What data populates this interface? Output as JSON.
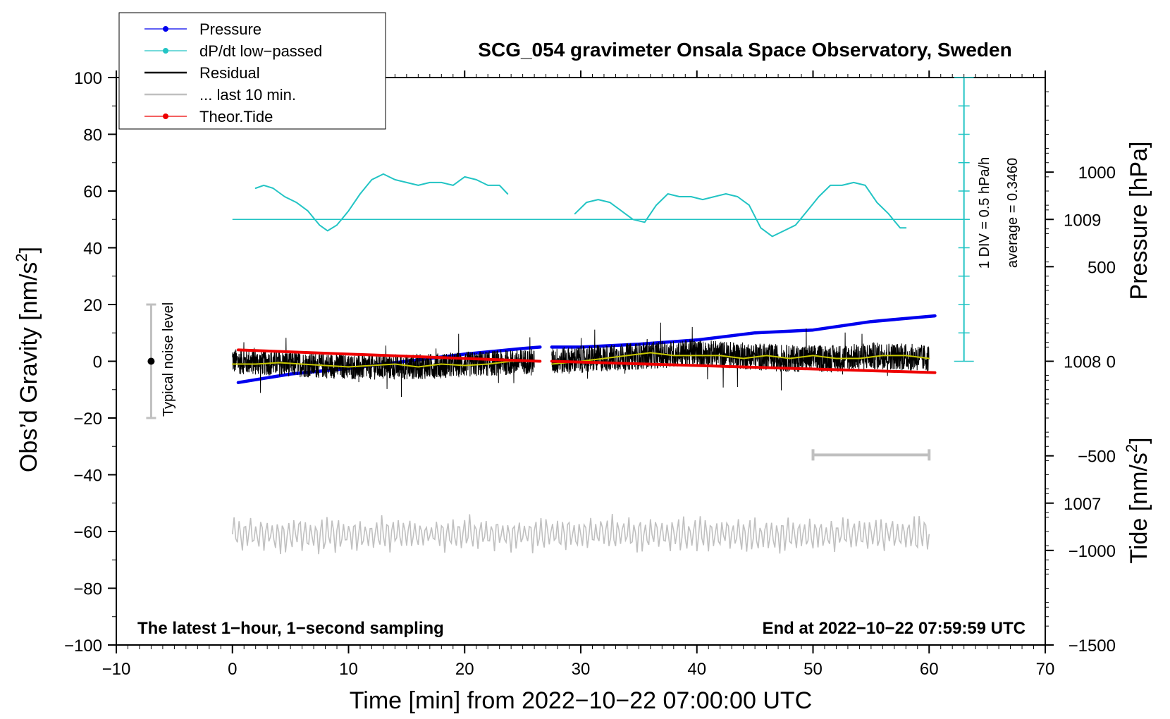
{
  "chart_data": {
    "type": "line",
    "title": "SCG_054 gravimeter Onsala Space Observatory, Sweden",
    "xlabel": "Time [min] from 2022−10−22 07:00:00 UTC",
    "ylabel_left_main": "Obs’d Gravity [nm/s",
    "ylabel_left_sup": "2",
    "ylabel_left_end": "]",
    "ylabel_right_pressure": "Pressure [hPa]",
    "ylabel_right_tide_main": "Tide [nm/s",
    "ylabel_right_tide_sup": "2",
    "ylabel_right_tide_end": "]",
    "xlim": [
      -10,
      70
    ],
    "ylim_gravity": [
      -100,
      100
    ],
    "pressure_range": [
      1006.0,
      1010.0
    ],
    "tide_range": [
      -1500,
      1500
    ],
    "x_ticks": [
      {
        "value": -10,
        "label": "−10"
      },
      {
        "value": 0,
        "label": "0"
      },
      {
        "value": 10,
        "label": "10"
      },
      {
        "value": 20,
        "label": "20"
      },
      {
        "value": 30,
        "label": "30"
      },
      {
        "value": 40,
        "label": "40"
      },
      {
        "value": 50,
        "label": "50"
      },
      {
        "value": 60,
        "label": "60"
      },
      {
        "value": 70,
        "label": "70"
      }
    ],
    "y_ticks_gravity": [
      {
        "value": 100,
        "label": "100"
      },
      {
        "value": 80,
        "label": "80"
      },
      {
        "value": 60,
        "label": "60"
      },
      {
        "value": 40,
        "label": "40"
      },
      {
        "value": 20,
        "label": "20"
      },
      {
        "value": 0,
        "label": "0"
      },
      {
        "value": -20,
        "label": "−20"
      },
      {
        "value": -40,
        "label": "−40"
      },
      {
        "value": -60,
        "label": "−60"
      },
      {
        "value": -80,
        "label": "−80"
      },
      {
        "value": -100,
        "label": "−100"
      }
    ],
    "y_ticks_pressure": [
      {
        "value": 1009,
        "label": "1009"
      },
      {
        "value": 1008,
        "label": "1008"
      },
      {
        "value": 1007,
        "label": "1007"
      }
    ],
    "y_ticks_tide": [
      {
        "value": 1000,
        "label": "1000"
      },
      {
        "value": 500,
        "label": "500"
      },
      {
        "value": 0,
        "label": "0"
      },
      {
        "value": -500,
        "label": "−500"
      },
      {
        "value": -1000,
        "label": "−1000"
      },
      {
        "value": -1500,
        "label": "−1500"
      }
    ],
    "legend": [
      {
        "label": "Pressure",
        "color": "#0000ee",
        "marker": true
      },
      {
        "label": "dP/dt low−passed",
        "color": "#22c4c4",
        "marker": true
      },
      {
        "label": "Residual",
        "color": "#000000",
        "marker": false
      },
      {
        "label": "... last 10 min.",
        "color": "#c0c0c0",
        "marker": false
      },
      {
        "label": "Theor.Tide",
        "color": "#ee0000",
        "marker": true
      }
    ],
    "series": [
      {
        "name": "Pressure",
        "unit": "hPa",
        "color": "#0000ee",
        "segments": [
          {
            "x": [
              0.5,
              5,
              10,
              15,
              20,
              25,
              26.5
            ],
            "y": [
              1007.85,
              1007.91,
              1007.95,
              1008.0,
              1008.05,
              1008.09,
              1008.1
            ]
          },
          {
            "x": [
              27.5,
              30,
              35,
              40,
              45,
              50,
              55,
              60.5
            ],
            "y": [
              1008.1,
              1008.1,
              1008.12,
              1008.15,
              1008.2,
              1008.22,
              1008.28,
              1008.32
            ]
          }
        ]
      },
      {
        "name": "dP/dt low-passed",
        "unit": "gravity axis",
        "color": "#22c4c4",
        "segments": [
          {
            "x": [
              2,
              2.7,
              3.5,
              4.5,
              5.5,
              6.5,
              7.5,
              8.2,
              9,
              10,
              11,
              12,
              13,
              14,
              15,
              16,
              17,
              18,
              19,
              20,
              21,
              22,
              23,
              23.7
            ],
            "y": [
              61,
              62,
              61,
              58,
              56,
              53,
              48,
              46,
              48,
              53,
              59,
              64,
              66,
              64,
              63,
              62,
              63,
              63,
              62,
              65,
              64,
              62,
              62,
              59
            ]
          },
          {
            "x": [
              29.5,
              30.5,
              31.5,
              32.5,
              33.5,
              34.5,
              35.5,
              36.5,
              37.5,
              38.5,
              39.5,
              40.5,
              41.5,
              42.5,
              43.5,
              44.5,
              45.5,
              46.5,
              47.5,
              48.5,
              49.5,
              50.5,
              51.5,
              52.5,
              53.5,
              54.5,
              55.5,
              56.5,
              57.5,
              58
            ],
            "y": [
              52,
              56,
              57,
              56,
              53,
              50,
              49,
              55,
              59,
              58,
              58,
              57,
              58,
              59,
              58,
              55,
              47,
              44,
              46,
              48,
              53,
              58,
              62,
              62,
              63,
              62,
              56,
              52,
              47,
              47
            ]
          }
        ]
      },
      {
        "name": "Residual",
        "unit": "gravity axis",
        "color": "#000000",
        "segments": [
          {
            "x_start": 0,
            "x_end": 26,
            "amplitude": 4.5,
            "y_base": [
              0,
              -1,
              -2,
              -2,
              -1,
              0
            ]
          },
          {
            "x_start": 27.5,
            "x_end": 60,
            "amplitude": 4.8,
            "y_base": [
              0,
              1,
              2,
              3,
              2,
              1,
              1,
              2,
              1
            ]
          }
        ]
      },
      {
        "name": "Residual smoothed",
        "unit": "gravity axis",
        "color": "#c8c800",
        "segments": [
          {
            "x": [
              0,
              2,
              4,
              6,
              8,
              10,
              12,
              14,
              16,
              18,
              20,
              22,
              24,
              26
            ],
            "y": [
              -1,
              -1,
              -0.5,
              -1,
              -1.5,
              -2,
              -1.5,
              -1,
              -2,
              -1,
              -1.5,
              -1,
              0,
              0
            ]
          },
          {
            "x": [
              27.5,
              30,
              32,
              34,
              36,
              38,
              40,
              42,
              44,
              46,
              48,
              50,
              52,
              54,
              56,
              58,
              60
            ],
            "y": [
              -1,
              0,
              1,
              2,
              3,
              2,
              2,
              2,
              1,
              2,
              1,
              2,
              1,
              1,
              2,
              2,
              1
            ]
          }
        ]
      },
      {
        "name": "... last 10 min.",
        "unit": "gravity axis",
        "color": "#c0c0c0",
        "segments": [
          {
            "x_start": 0,
            "x_end": 60,
            "center": -61,
            "amplitude": 6
          }
        ]
      },
      {
        "name": "Theor.Tide",
        "unit": "nm/s2",
        "color": "#ee0000",
        "segments": [
          {
            "x": [
              0.5,
              26.5
            ],
            "y": [
              60,
              0
            ]
          },
          {
            "x": [
              27.5,
              60.5
            ],
            "y": [
              0,
              -60
            ]
          }
        ]
      }
    ],
    "noise_bar": {
      "x": -7,
      "y_center": 0,
      "y_half": 20,
      "label": "Typical noise level"
    },
    "scale_bar": {
      "x": [
        50,
        60
      ],
      "y": -33,
      "color": "#c0c0c0"
    },
    "dpdt_scale": {
      "x": 63,
      "y_top": 100,
      "y_bottom": 0,
      "divisions": 10,
      "baseline_y": 50,
      "baseline_x": [
        0,
        63.5
      ],
      "label_div": "1 DIV = 0.5 hPa/h",
      "label_avg": "average = 0.3460",
      "color": "#22c4c4"
    },
    "footer_left": "The latest 1−hour, 1−second sampling",
    "footer_right": "End at 2022−10−22 07:59:59 UTC"
  }
}
